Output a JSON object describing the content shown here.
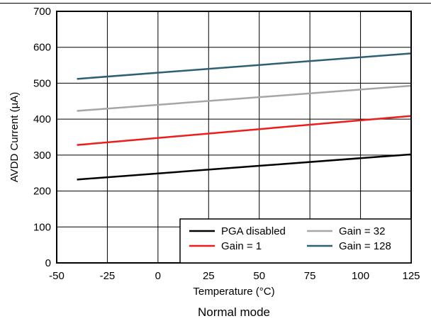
{
  "caption": "Normal mode",
  "chart_data": {
    "type": "line",
    "xlabel": "Temperature (°C)",
    "ylabel": "AVDD Current (µA)",
    "xlim": [
      -50,
      125
    ],
    "ylim": [
      0,
      700
    ],
    "xticks": [
      "-50",
      "-25",
      "0",
      "25",
      "50",
      "75",
      "100",
      "125"
    ],
    "yticks": [
      "0",
      "100",
      "200",
      "300",
      "400",
      "500",
      "600",
      "700"
    ],
    "grid": true,
    "legend_position": "bottom-right",
    "x": [
      -40,
      125
    ],
    "series": [
      {
        "name": "PGA disabled",
        "values": [
          232,
          302
        ],
        "color": "#000000"
      },
      {
        "name": "Gain = 1",
        "values": [
          328,
          409
        ],
        "color": "#ee1c1c"
      },
      {
        "name": "Gain = 32",
        "values": [
          423,
          493
        ],
        "color": "#a6a6a6"
      },
      {
        "name": "Gain = 128",
        "values": [
          512,
          583
        ],
        "color": "#2f5f73"
      }
    ]
  }
}
